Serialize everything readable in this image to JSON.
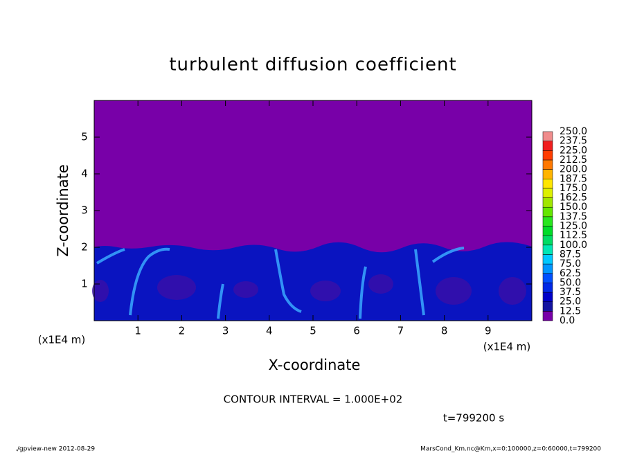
{
  "chart_data": {
    "type": "contour",
    "title": "turbulent diffusion coefficient",
    "x_label": "X-coordinate",
    "y_label": "Z-coordinate",
    "x_unit": "(x1E4 m)",
    "y_unit": "(x1E4 m)",
    "xlim": [
      0,
      10
    ],
    "xticks": [
      1,
      2,
      3,
      4,
      5,
      6,
      7,
      8,
      9
    ],
    "ylim": [
      0,
      6
    ],
    "yticks": [
      1,
      2,
      3,
      4,
      5
    ],
    "levels": [
      {
        "value": 0,
        "label": "0.0"
      },
      {
        "value": 12.5,
        "label": "12.5"
      },
      {
        "value": 25,
        "label": "25.0"
      },
      {
        "value": 37.5,
        "label": "37.5"
      },
      {
        "value": 50,
        "label": "50.0"
      },
      {
        "value": 62.5,
        "label": "62.5"
      },
      {
        "value": 75,
        "label": "75.0"
      },
      {
        "value": 87.5,
        "label": "87.5"
      },
      {
        "value": 100,
        "label": "100.0"
      },
      {
        "value": 112.5,
        "label": "112.5"
      },
      {
        "value": 125,
        "label": "125.0"
      },
      {
        "value": 137.5,
        "label": "137.5"
      },
      {
        "value": 150,
        "label": "150.0"
      },
      {
        "value": 162.5,
        "label": "162.5"
      },
      {
        "value": 175,
        "label": "175.0"
      },
      {
        "value": 187.5,
        "label": "187.5"
      },
      {
        "value": 200,
        "label": "200.0"
      },
      {
        "value": 212.5,
        "label": "212.5"
      },
      {
        "value": 225,
        "label": "225.0"
      },
      {
        "value": 237.5,
        "label": "237.5"
      },
      {
        "value": 250,
        "label": "250.0"
      }
    ],
    "colors": [
      "#7800a8",
      "#1414a0",
      "#0000c8",
      "#0028e6",
      "#0050ff",
      "#0096ff",
      "#00c8ff",
      "#00e6b4",
      "#00dc64",
      "#00dc28",
      "#28e61e",
      "#64e600",
      "#a0e600",
      "#dcf000",
      "#ffe600",
      "#ffb400",
      "#ff7800",
      "#ff3c00",
      "#f01e1e",
      "#f08c8c"
    ],
    "contour_interval": "CONTOUR INTERVAL = 1.000E+02",
    "time_label": "t=799200 s",
    "footer_left": "./gpview-new  2012-08-29",
    "footer_right": "MarsCond_Km.nc@Km,x=0:100000,z=0:60000,t=799200"
  }
}
